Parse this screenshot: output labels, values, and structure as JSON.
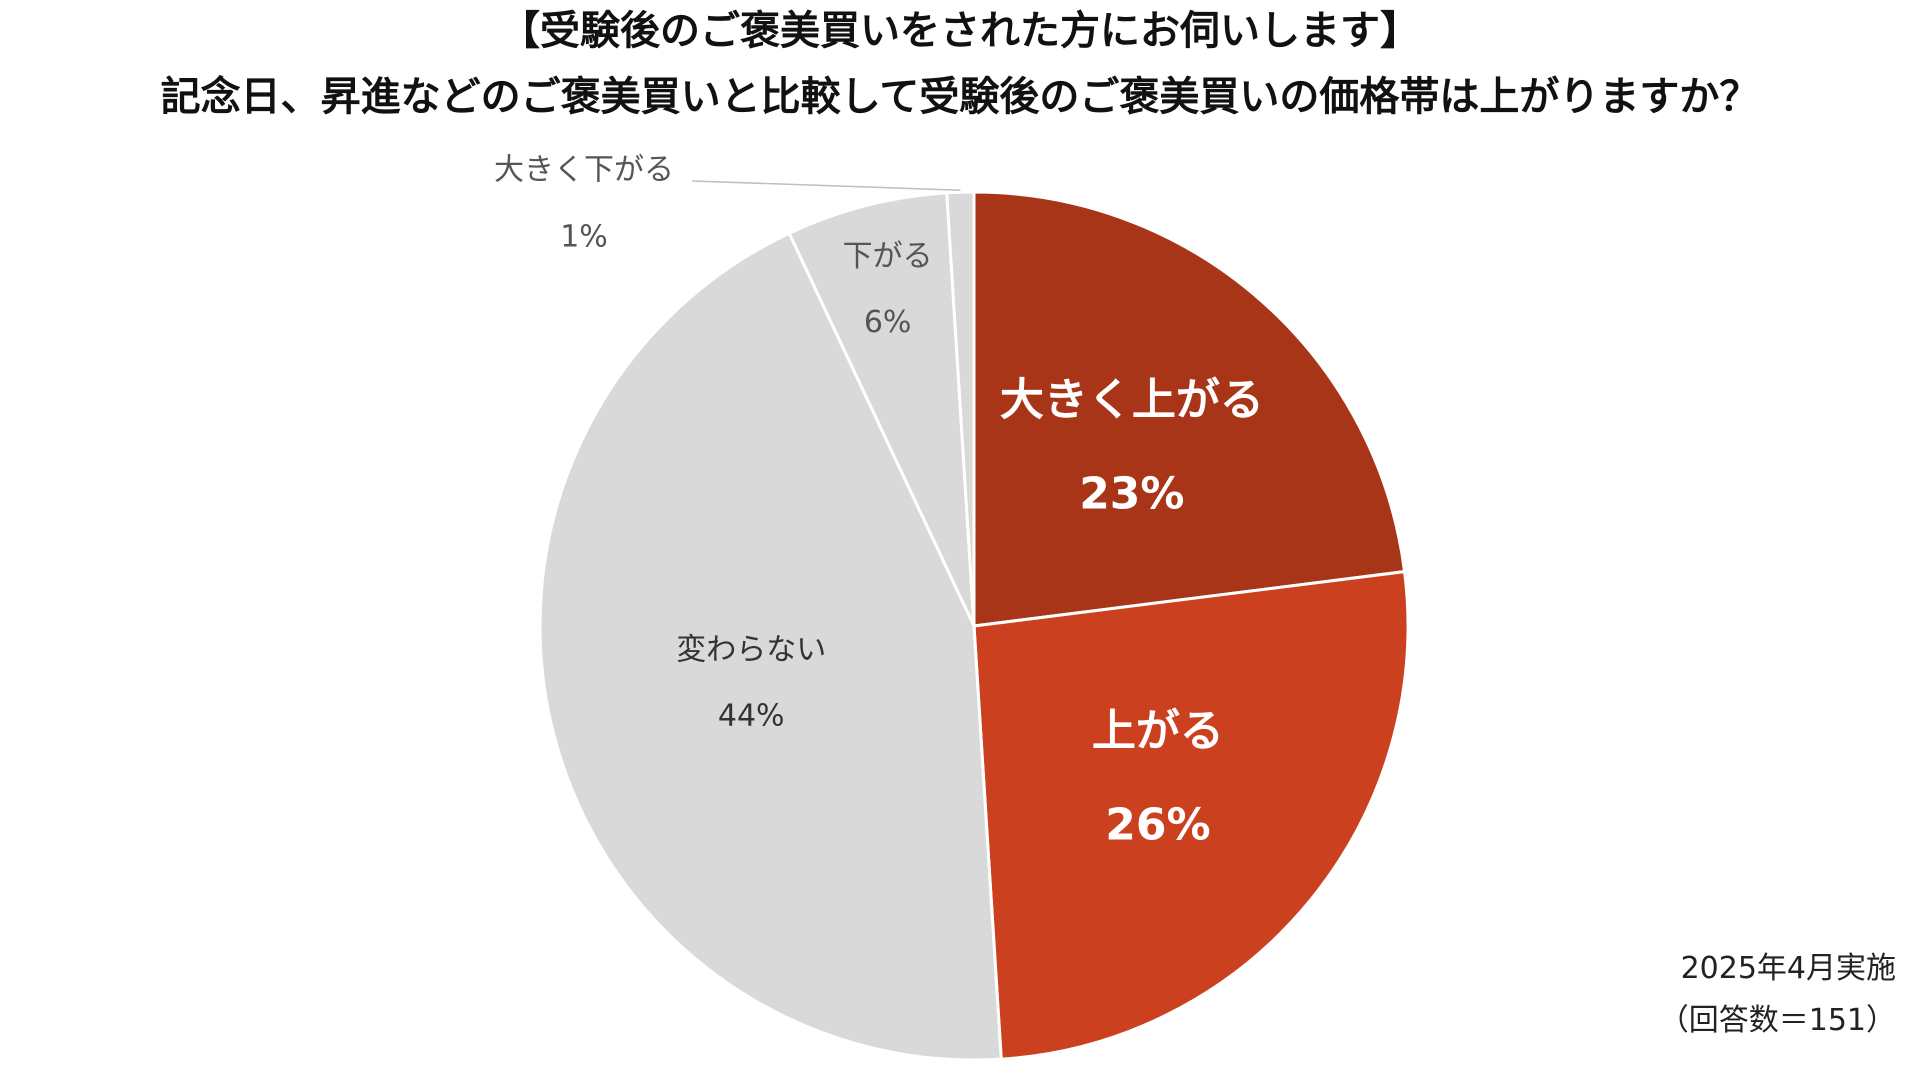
{
  "chart_data": {
    "type": "pie",
    "title": "【受験後のご褒美買いをされた方にお伺いします】",
    "subtitle": "記念日、昇進などのご褒美買いと比較して受験後のご褒美買いの価格帯は上がりますか？",
    "slices": [
      {
        "label": "大きく上がる",
        "value": 23,
        "value_label": "23%",
        "color": "#A93518",
        "text_color": "#ffffff",
        "bold": true
      },
      {
        "label": "上がる",
        "value": 26,
        "value_label": "26%",
        "color": "#CB4120",
        "text_color": "#ffffff",
        "bold": true
      },
      {
        "label": "変わらない",
        "value": 44,
        "value_label": "44%",
        "color": "#D9D9D9",
        "text_color": "#333333",
        "bold": false
      },
      {
        "label": "下がる",
        "value": 6,
        "value_label": "6%",
        "color": "#D9D9D9",
        "text_color": "#555555",
        "bold": false
      },
      {
        "label": "大きく下がる",
        "value": 1,
        "value_label": "1%",
        "color": "#D9D9D9",
        "text_color": "#555555",
        "bold": false
      }
    ],
    "start_angle": "12 o'clock",
    "direction": "clockwise",
    "legend": "none"
  },
  "notes": {
    "date": "2025年4月実施",
    "respondents": "（回答数＝151）"
  }
}
